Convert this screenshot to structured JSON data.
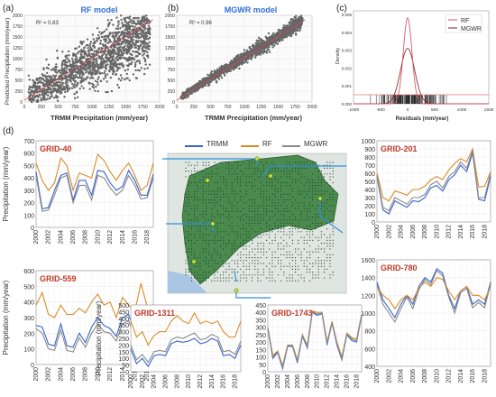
{
  "panel_labels": {
    "a": "(a)",
    "b": "(b)",
    "c": "(c)",
    "d": "(d)"
  },
  "colors": {
    "trmm": "#3a63c9",
    "rf": "#d98b26",
    "mgwr": "#8a8a8a",
    "title_blue": "#2f6fd6",
    "grid_red": "#c0392b",
    "scatter": "#666666",
    "fit": "#d04a5a",
    "arrow": "#2e8fe0",
    "map_green": "#2f7d3a"
  },
  "scatter_a": {
    "title": "RF model",
    "r2": "R² = 0.83",
    "xlabel": "TRMM Precipitation (mm/year)",
    "ylabel": "Predicted Precipitation (mm/year)",
    "xticks": [
      "0",
      "250",
      "500",
      "750",
      "1000",
      "1250",
      "1500",
      "1750",
      "2000"
    ],
    "yticks": [
      "0",
      "250",
      "500",
      "750",
      "1000",
      "1250",
      "1500",
      "1750",
      "2000"
    ]
  },
  "scatter_b": {
    "title": "MGWR model",
    "r2": "R² = 0.96",
    "xlabel": "TRMM Precipitation (mm/year)",
    "ylabel": "",
    "xticks": [
      "0",
      "250",
      "500",
      "750",
      "1000",
      "1250",
      "1500",
      "1750",
      "2000"
    ],
    "yticks": [
      "0",
      "250",
      "500",
      "750",
      "1000",
      "1250",
      "1500",
      "1750",
      "2000"
    ]
  },
  "density_c": {
    "ylabel": "Density",
    "xlabel": "Residuals (mm/year)",
    "yticks": [
      "0.000",
      "0.001",
      "0.002",
      "0.003",
      "0.004",
      "0.005"
    ],
    "xticks": [
      "-1000",
      "-500",
      "0",
      "500",
      "1000",
      "1500"
    ],
    "legend": [
      "RF",
      "MGWR"
    ]
  },
  "legend_d": {
    "trmm": "TRMM",
    "rf": "RF",
    "mgwr": "MGWR"
  },
  "chart_data": [
    {
      "type": "scatter",
      "title": "RF model",
      "annotation": "R² = 0.83",
      "xlabel": "TRMM Precipitation (mm/year)",
      "ylabel": "Predicted Precipitation (mm/year)",
      "xlim": [
        0,
        2000
      ],
      "ylim": [
        0,
        2000
      ]
    },
    {
      "type": "scatter",
      "title": "MGWR model",
      "annotation": "R² = 0.96",
      "xlabel": "TRMM Precipitation (mm/year)",
      "xlim": [
        0,
        2000
      ],
      "ylim": [
        0,
        2000
      ]
    },
    {
      "type": "area",
      "xlabel": "Residuals (mm/year)",
      "ylabel": "Density",
      "xlim": [
        -1000,
        1500
      ],
      "ylim": [
        0,
        0.005
      ],
      "series": [
        {
          "name": "RF",
          "peak_x": 0,
          "peak_density": 0.0048
        },
        {
          "name": "MGWR",
          "peak_x": 0,
          "peak_density": 0.0031
        }
      ]
    },
    {
      "type": "line",
      "title": "GRID-40",
      "ylabel": "Precipitation (mm/year)",
      "ylim": [
        0,
        700
      ],
      "yticks": [
        0,
        100,
        200,
        300,
        400,
        500,
        600,
        700
      ],
      "xticks": [
        "2000",
        "2002",
        "2004",
        "2006",
        "2008",
        "2010",
        "2012",
        "2014",
        "2016",
        "2018"
      ],
      "x": [
        2000,
        2001,
        2002,
        2003,
        2004,
        2005,
        2006,
        2007,
        2008,
        2009,
        2010,
        2011,
        2012,
        2013,
        2014,
        2015,
        2016,
        2017,
        2018,
        2019
      ],
      "series": [
        {
          "name": "TRMM",
          "values": [
            450,
            150,
            160,
            300,
            420,
            440,
            220,
            380,
            380,
            260,
            460,
            450,
            360,
            300,
            330,
            460,
            380,
            260,
            260,
            430
          ]
        },
        {
          "name": "RF",
          "values": [
            520,
            380,
            300,
            360,
            560,
            500,
            300,
            440,
            420,
            400,
            590,
            540,
            450,
            380,
            460,
            520,
            420,
            300,
            340,
            520
          ]
        },
        {
          "name": "MGWR",
          "values": [
            420,
            130,
            140,
            260,
            400,
            420,
            200,
            340,
            340,
            220,
            420,
            400,
            320,
            260,
            300,
            420,
            340,
            230,
            240,
            400
          ]
        }
      ]
    },
    {
      "type": "line",
      "title": "GRID-201",
      "ylabel": "",
      "ylim": [
        0,
        1000
      ],
      "yticks": [
        0,
        100,
        200,
        300,
        400,
        500,
        600,
        700,
        800,
        900,
        1000
      ],
      "xticks": [
        "2000",
        "2002",
        "2004",
        "2006",
        "2008",
        "2010",
        "2012",
        "2014",
        "2016",
        "2018"
      ],
      "x": [
        2000,
        2001,
        2002,
        2003,
        2004,
        2005,
        2006,
        2007,
        2008,
        2009,
        2010,
        2011,
        2012,
        2013,
        2014,
        2015,
        2016,
        2017,
        2018,
        2019
      ],
      "series": [
        {
          "name": "TRMM",
          "values": [
            560,
            150,
            100,
            260,
            220,
            180,
            260,
            250,
            300,
            420,
            450,
            380,
            520,
            580,
            700,
            620,
            850,
            280,
            260,
            560
          ]
        },
        {
          "name": "RF",
          "values": [
            600,
            300,
            260,
            380,
            360,
            330,
            400,
            400,
            440,
            520,
            560,
            520,
            640,
            720,
            780,
            740,
            900,
            430,
            440,
            620
          ]
        },
        {
          "name": "MGWR",
          "values": [
            580,
            180,
            140,
            300,
            260,
            220,
            300,
            300,
            340,
            460,
            500,
            420,
            560,
            620,
            740,
            660,
            880,
            300,
            300,
            600
          ]
        }
      ]
    },
    {
      "type": "line",
      "title": "GRID-559",
      "ylabel": "Precipitation (mm/year)",
      "ylim": [
        0,
        600
      ],
      "yticks": [
        0,
        100,
        200,
        300,
        400,
        500,
        600
      ],
      "xticks": [
        "2000",
        "2002",
        "2004",
        "2006",
        "2008",
        "2010",
        "2012",
        "2014",
        "2016",
        "2018"
      ],
      "x": [
        2000,
        2001,
        2002,
        2003,
        2004,
        2005,
        2006,
        2007,
        2008,
        2009,
        2010,
        2011,
        2012,
        2013,
        2014,
        2015,
        2016,
        2017,
        2018,
        2019
      ],
      "series": [
        {
          "name": "TRMM",
          "values": [
            250,
            240,
            130,
            120,
            260,
            120,
            110,
            200,
            140,
            240,
            300,
            250,
            230,
            180,
            300,
            320,
            200,
            180,
            300,
            240
          ]
        },
        {
          "name": "RF",
          "values": [
            380,
            460,
            320,
            300,
            380,
            320,
            320,
            360,
            330,
            400,
            450,
            380,
            400,
            300,
            430,
            380,
            340,
            520,
            370,
            380
          ]
        },
        {
          "name": "MGWR",
          "values": [
            230,
            200,
            100,
            90,
            220,
            90,
            80,
            170,
            110,
            200,
            260,
            210,
            200,
            150,
            260,
            280,
            170,
            140,
            260,
            200
          ]
        }
      ]
    },
    {
      "type": "line",
      "title": "GRID-780",
      "ylabel": "",
      "ylim": [
        400,
        1600
      ],
      "yticks": [
        400,
        600,
        800,
        1000,
        1200,
        1400,
        1600
      ],
      "xticks": [
        "2000",
        "2002",
        "2004",
        "2006",
        "2008",
        "2010",
        "2012",
        "2014",
        "2016",
        "2018"
      ],
      "x": [
        2000,
        2001,
        2002,
        2003,
        2004,
        2005,
        2006,
        2007,
        2008,
        2009,
        2010,
        2011,
        2012,
        2013,
        2014,
        2015,
        2016,
        2017,
        2018,
        2019
      ],
      "series": [
        {
          "name": "TRMM",
          "values": [
            1350,
            1150,
            1050,
            950,
            1100,
            1200,
            1100,
            1300,
            1400,
            1350,
            1500,
            1450,
            1200,
            1050,
            1250,
            1300,
            1100,
            1150,
            1100,
            1350
          ]
        },
        {
          "name": "RF",
          "values": [
            1300,
            1200,
            1150,
            1050,
            1150,
            1200,
            1150,
            1280,
            1350,
            1300,
            1400,
            1380,
            1250,
            1150,
            1250,
            1300,
            1200,
            1200,
            1150,
            1300
          ]
        },
        {
          "name": "MGWR",
          "values": [
            1320,
            1100,
            1000,
            900,
            1050,
            1180,
            1050,
            1260,
            1380,
            1320,
            1480,
            1420,
            1180,
            1000,
            1230,
            1280,
            1060,
            1120,
            1060,
            1330
          ]
        }
      ]
    },
    {
      "type": "line",
      "title": "GRID-1311",
      "ylabel": "Precipitation (mm/year)",
      "ylim": [
        0,
        500
      ],
      "yticks": [
        0,
        50,
        100,
        150,
        200,
        250,
        300,
        350,
        400,
        450,
        500
      ],
      "xticks": [
        "2000",
        "2002",
        "2004",
        "2006",
        "2008",
        "2010",
        "2012",
        "2014",
        "2016",
        "2018"
      ],
      "x": [
        2000,
        2001,
        2002,
        2003,
        2004,
        2005,
        2006,
        2007,
        2008,
        2009,
        2010,
        2011,
        2012,
        2013,
        2014,
        2015,
        2016,
        2017,
        2018,
        2019
      ],
      "series": [
        {
          "name": "TRMM",
          "values": [
            170,
            60,
            100,
            40,
            120,
            130,
            120,
            210,
            230,
            220,
            230,
            250,
            210,
            220,
            250,
            230,
            120,
            130,
            100,
            200
          ]
        },
        {
          "name": "RF",
          "values": [
            380,
            260,
            300,
            200,
            270,
            300,
            300,
            380,
            420,
            380,
            360,
            440,
            360,
            380,
            360,
            380,
            300,
            260,
            260,
            380
          ]
        },
        {
          "name": "MGWR",
          "values": [
            200,
            90,
            130,
            70,
            150,
            160,
            150,
            240,
            260,
            250,
            270,
            290,
            240,
            250,
            280,
            260,
            150,
            160,
            130,
            230
          ]
        }
      ]
    },
    {
      "type": "line",
      "title": "GRID-1743",
      "ylabel": "",
      "ylim": [
        0,
        450
      ],
      "yticks": [
        0,
        50,
        100,
        150,
        200,
        250,
        300,
        350,
        400,
        450
      ],
      "xticks": [
        "2000",
        "2002",
        "2004",
        "2006",
        "2008",
        "2010",
        "2012",
        "2014",
        "2016",
        "2018"
      ],
      "x": [
        2000,
        2001,
        2002,
        2003,
        2004,
        2005,
        2006,
        2007,
        2008,
        2009,
        2010,
        2011,
        2012,
        2013,
        2014,
        2015,
        2016,
        2017,
        2018,
        2019
      ],
      "series": [
        {
          "name": "TRMM",
          "values": [
            290,
            90,
            130,
            20,
            170,
            170,
            60,
            240,
            160,
            400,
            380,
            390,
            180,
            330,
            180,
            80,
            250,
            210,
            200,
            380
          ]
        },
        {
          "name": "RF",
          "values": [
            300,
            110,
            140,
            40,
            180,
            180,
            80,
            250,
            180,
            410,
            400,
            400,
            200,
            340,
            200,
            100,
            260,
            230,
            220,
            390
          ]
        },
        {
          "name": "MGWR",
          "values": [
            295,
            100,
            135,
            30,
            175,
            175,
            70,
            245,
            170,
            405,
            390,
            395,
            190,
            335,
            190,
            90,
            255,
            220,
            210,
            385
          ]
        }
      ]
    }
  ]
}
